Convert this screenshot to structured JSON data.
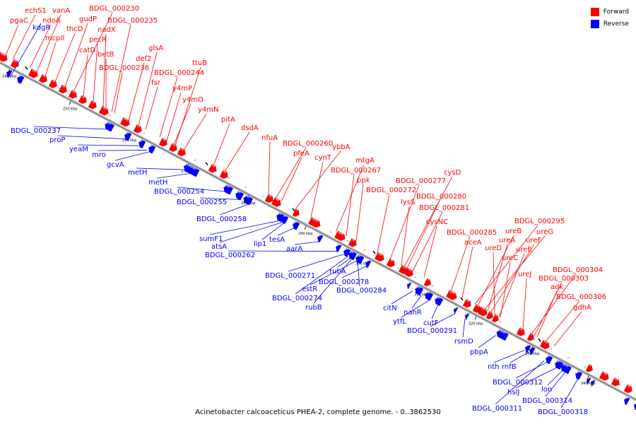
{
  "caption": "Acinetobacter calcoaceticus PHEA-2, complete genome. - 0..3862530",
  "legend": [
    {
      "label": "Forward",
      "color": "#ff0000"
    },
    {
      "label": "Reverse",
      "color": "#0000ff"
    }
  ],
  "colors": {
    "forward": "#ff0000",
    "reverse": "#0000ff",
    "backbone": "#888888"
  },
  "ticks": [
    "240 kbp",
    "250 kbp",
    "260 kbp",
    "270 kbp",
    "280 kbp",
    "290 kbp",
    "300 kbp",
    "310 kbp",
    "320 kbp",
    "330 kbp",
    "340 kbp"
  ],
  "forward_genes": [
    "pgaC",
    "echS1",
    "ndoA",
    "vanA",
    "mcpII",
    "thcD",
    "gudP",
    "BDGL_000230",
    "catD",
    "pecR",
    "nadX",
    "BDGL_000235",
    "betB",
    "BDGL_000236",
    "def2",
    "glsA",
    "fsr",
    "BDGL_000244",
    "ttuB",
    "y4mP",
    "y4mO",
    "y4mN",
    "pitA",
    "dsdA",
    "nfuA",
    "BDGL_000260",
    "pfeA",
    "ybbA",
    "cynT",
    "mtgA",
    "BDGL_000267",
    "ppk",
    "BDGL_000272",
    "BDGL_000277",
    "cysD",
    "lysS",
    "BDGL_000280",
    "BDGL_000281",
    "cysNC",
    "BDGL_000285",
    "aceA",
    "BDGL_000295",
    "ureB",
    "ureG",
    "ureA",
    "ureF",
    "ureD",
    "ureE",
    "ureC",
    "ureJ",
    "BDGL_000304",
    "BDGL_000303",
    "adk",
    "BDGL_000306",
    "gdhA"
  ],
  "reverse_genes": [
    "kdgR",
    "BDGL_000237",
    "proP",
    "yeaM",
    "mro",
    "gcvA",
    "metH",
    "metH",
    "BDGL_000254",
    "BDGL_000255",
    "BDGL_000258",
    "sumF1",
    "atsA",
    "lip1",
    "tesA",
    "aarA",
    "BDGL_000262",
    "BDGL_000271",
    "rubA",
    "estR",
    "BDGL_000278",
    "BDGL_000274",
    "BDGL_000284",
    "rubB",
    "citN",
    "nahR",
    "ytfL",
    "cutF",
    "BDGL_000291",
    "rsmD",
    "pbpA",
    "nth",
    "rnfB",
    "BDGL_000312",
    "hslJ",
    "lon",
    "BDGL_000314",
    "BDGL_000311",
    "BDGL_000318"
  ]
}
